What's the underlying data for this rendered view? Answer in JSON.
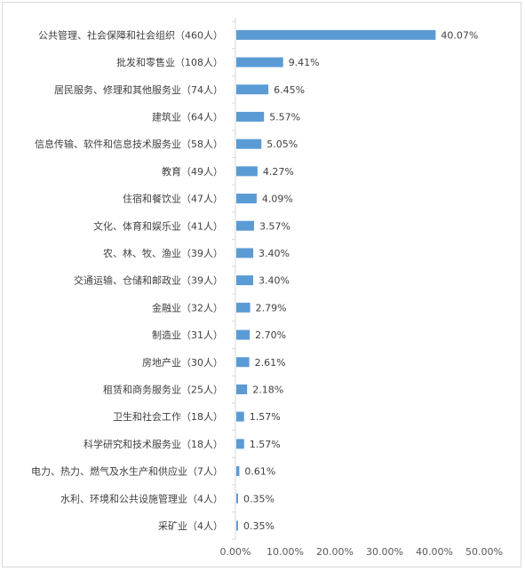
{
  "chart_data": {
    "type": "bar",
    "orientation": "horizontal",
    "categories": [
      "公共管理、社会保障和社会组织（460人）",
      "批发和零售业（108人）",
      "居民服务、修理和其他服务业（74人）",
      "建筑业（64人）",
      "信息传输、软件和信息技术服务业（58人）",
      "教育（49人）",
      "住宿和餐饮业（47人）",
      "文化、体育和娱乐业（41人）",
      "农、林、牧、渔业（39人）",
      "交通运输、仓储和邮政业（39人）",
      "金融业（32人）",
      "制造业（31人）",
      "房地产业（30人）",
      "租赁和商务服务业（25人）",
      "卫生和社会工作（18人）",
      "科学研究和技术服务业（18人）",
      "电力、热力、燃气及水生产和供应业（7人）",
      "水利、环境和公共设施管理业（4人）",
      "采矿业（4人）"
    ],
    "values": [
      40.07,
      9.41,
      6.45,
      5.57,
      5.05,
      4.27,
      4.09,
      3.57,
      3.4,
      3.4,
      2.79,
      2.7,
      2.61,
      2.18,
      1.57,
      1.57,
      0.61,
      0.35,
      0.35
    ],
    "value_labels": [
      "40.07%",
      "9.41%",
      "6.45%",
      "5.57%",
      "5.05%",
      "4.27%",
      "4.09%",
      "3.57%",
      "3.40%",
      "3.40%",
      "2.79%",
      "2.70%",
      "2.61%",
      "2.18%",
      "1.57%",
      "1.57%",
      "0.61%",
      "0.35%",
      "0.35%"
    ],
    "x_ticks": [
      "0.00%",
      "10.00%",
      "20.00%",
      "30.00%",
      "40.00%",
      "50.00%"
    ],
    "xlim": [
      0,
      50
    ],
    "grid": false,
    "bar_color": "#5b9bd5",
    "axis_color": "#d9d9d9"
  }
}
